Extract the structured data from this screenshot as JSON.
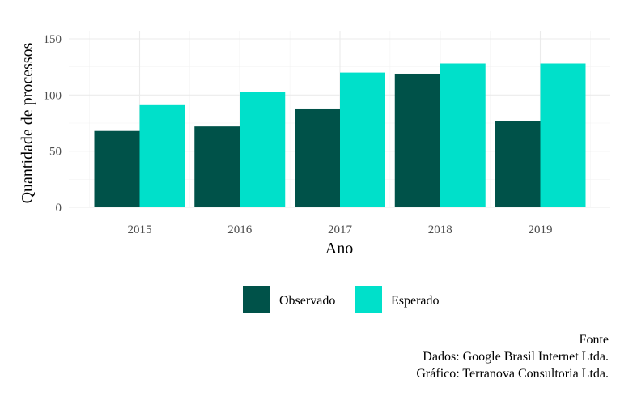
{
  "chart_data": {
    "type": "bar",
    "title": "",
    "xlabel": "Ano",
    "ylabel": "Quantidade de processos",
    "categories": [
      "2015",
      "2016",
      "2017",
      "2018",
      "2019"
    ],
    "series": [
      {
        "name": "Observado",
        "color": "#005249",
        "values": [
          68,
          72,
          88,
          119,
          77
        ]
      },
      {
        "name": "Esperado",
        "color": "#00E0CA",
        "values": [
          91,
          103,
          120,
          128,
          128
        ]
      }
    ],
    "ylim": [
      0,
      150
    ],
    "yticks": [
      "0",
      "50",
      "100",
      "150"
    ],
    "grid": true,
    "legend_position": "bottom"
  },
  "caption": {
    "lines": [
      "Fonte",
      "Dados: Google Brasil Internet Ltda.",
      "Gráfico: Terranova Consultoria Ltda."
    ]
  }
}
